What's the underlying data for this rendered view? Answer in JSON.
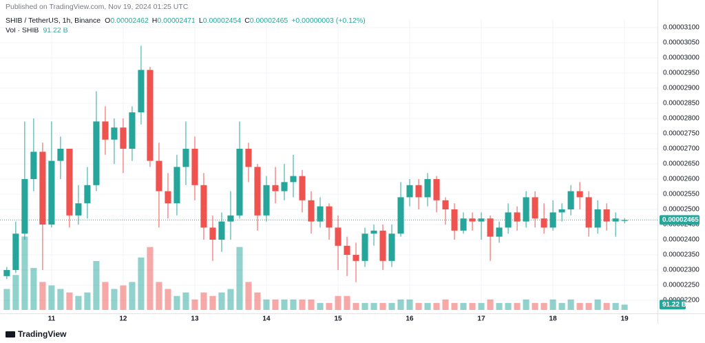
{
  "header": {
    "published": "Published on TradingView.com, Nov 19, 2024 01:25 UTC",
    "symbol": "SHIB / TetherUS, 1h, Binance",
    "o_label": "O",
    "o": "0.00002462",
    "h_label": "H",
    "h": "0.00002471",
    "l_label": "L",
    "l": "0.00002454",
    "c_label": "C",
    "c": "0.00002465",
    "change": "+0.00000003 (+0.12%)",
    "vol_label": "Vol · SHIB",
    "vol_value": "91.22 B"
  },
  "footer": {
    "brand": "TradingView"
  },
  "chart_data": {
    "type": "candlestick",
    "up_color": "#26a69a",
    "down_color": "#ef5350",
    "grid": true,
    "xlim": [
      10.28,
      19.46
    ],
    "xticks": [
      11,
      12,
      13,
      14,
      15,
      16,
      17,
      18,
      19
    ],
    "ylim": [
      2.157e-05,
      3.127e-05
    ],
    "yticks": [
      {
        "value": 2.2e-05,
        "label": "0.00002200"
      },
      {
        "value": 2.25e-05,
        "label": "0.00002250"
      },
      {
        "value": 2.3e-05,
        "label": "0.00002300"
      },
      {
        "value": 2.35e-05,
        "label": "0.00002350"
      },
      {
        "value": 2.4e-05,
        "label": "0.00002400"
      },
      {
        "value": 2.45e-05,
        "label": "0.00002450"
      },
      {
        "value": 2.5e-05,
        "label": "0.00002500"
      },
      {
        "value": 2.55e-05,
        "label": "0.00002550"
      },
      {
        "value": 2.6e-05,
        "label": "0.00002600"
      },
      {
        "value": 2.65e-05,
        "label": "0.00002650"
      },
      {
        "value": 2.7e-05,
        "label": "0.00002700"
      },
      {
        "value": 2.75e-05,
        "label": "0.00002750"
      },
      {
        "value": 2.8e-05,
        "label": "0.00002800"
      },
      {
        "value": 2.85e-05,
        "label": "0.00002850"
      },
      {
        "value": 2.9e-05,
        "label": "0.00002900"
      },
      {
        "value": 2.95e-05,
        "label": "0.00002950"
      },
      {
        "value": 3e-05,
        "label": "0.00003000"
      },
      {
        "value": 3.05e-05,
        "label": "0.00003050"
      },
      {
        "value": 3.1e-05,
        "label": "0.00003100"
      }
    ],
    "last_price": {
      "value": 2.465e-05,
      "label": "0.00002465"
    },
    "vlim": [
      0,
      1300
    ],
    "x": [
      10.375,
      10.5,
      10.625,
      10.75,
      10.875,
      11,
      11.125,
      11.25,
      11.375,
      11.5,
      11.625,
      11.75,
      11.875,
      12,
      12.125,
      12.25,
      12.375,
      12.5,
      12.625,
      12.75,
      12.875,
      13,
      13.125,
      13.25,
      13.375,
      13.5,
      13.625,
      13.75,
      13.875,
      14,
      14.125,
      14.25,
      14.375,
      14.5,
      14.625,
      14.75,
      14.875,
      15,
      15.125,
      15.25,
      15.375,
      15.5,
      15.625,
      15.75,
      15.875,
      16,
      16.125,
      16.25,
      16.375,
      16.5,
      16.625,
      16.75,
      16.875,
      17,
      17.125,
      17.25,
      17.375,
      17.5,
      17.625,
      17.75,
      17.875,
      18,
      18.125,
      18.25,
      18.375,
      18.5,
      18.625,
      18.75,
      18.875,
      19
    ],
    "open": [
      2.28e-05,
      2.3e-05,
      2.42e-05,
      2.6e-05,
      2.69e-05,
      2.45e-05,
      2.66e-05,
      2.7e-05,
      2.48e-05,
      2.52e-05,
      2.58e-05,
      2.79e-05,
      2.73e-05,
      2.77e-05,
      2.7e-05,
      2.82e-05,
      2.96e-05,
      2.66e-05,
      2.56e-05,
      2.52e-05,
      2.64e-05,
      2.7e-05,
      2.58e-05,
      2.44e-05,
      2.4e-05,
      2.46e-05,
      2.48e-05,
      2.7e-05,
      2.64e-05,
      2.48e-05,
      2.58e-05,
      2.56e-05,
      2.59e-05,
      2.61e-05,
      2.53e-05,
      2.46e-05,
      2.51e-05,
      2.44e-05,
      2.38e-05,
      2.35e-05,
      2.33e-05,
      2.42e-05,
      2.43e-05,
      2.33e-05,
      2.42e-05,
      2.54e-05,
      2.58e-05,
      2.54e-05,
      2.6e-05,
      2.53e-05,
      2.5e-05,
      2.43e-05,
      2.47e-05,
      2.46e-05,
      2.47e-05,
      2.41e-05,
      2.44e-05,
      2.49e-05,
      2.46e-05,
      2.54e-05,
      2.47e-05,
      2.44e-05,
      2.49e-05,
      2.5e-05,
      2.56e-05,
      2.54e-05,
      2.44e-05,
      2.5e-05,
      2.46e-05,
      2.462e-05
    ],
    "high": [
      2.31e-05,
      2.46e-05,
      2.79e-05,
      2.8e-05,
      2.72e-05,
      2.79e-05,
      2.74e-05,
      2.7e-05,
      2.58e-05,
      2.64e-05,
      2.89e-05,
      2.84e-05,
      2.8e-05,
      2.8e-05,
      2.84e-05,
      3.04e-05,
      2.97e-05,
      2.72e-05,
      2.62e-05,
      2.68e-05,
      2.79e-05,
      2.74e-05,
      2.62e-05,
      2.48e-05,
      2.49e-05,
      2.56e-05,
      2.79e-05,
      2.72e-05,
      2.65e-05,
      2.61e-05,
      2.64e-05,
      2.65e-05,
      2.68e-05,
      2.63e-05,
      2.56e-05,
      2.54e-05,
      2.52e-05,
      2.48e-05,
      2.41e-05,
      2.39e-05,
      2.44e-05,
      2.45e-05,
      2.45e-05,
      2.45e-05,
      2.59e-05,
      2.6e-05,
      2.6e-05,
      2.62e-05,
      2.61e-05,
      2.54e-05,
      2.52e-05,
      2.49e-05,
      2.49e-05,
      2.49e-05,
      2.48e-05,
      2.46e-05,
      2.52e-05,
      2.51e-05,
      2.56e-05,
      2.56e-05,
      2.52e-05,
      2.53e-05,
      2.52e-05,
      2.58e-05,
      2.59e-05,
      2.56e-05,
      2.53e-05,
      2.52e-05,
      2.49e-05,
      2.471e-05
    ],
    "low": [
      2.27e-05,
      2.29e-05,
      2.4e-05,
      2.56e-05,
      2.3e-05,
      2.44e-05,
      2.6e-05,
      2.44e-05,
      2.45e-05,
      2.47e-05,
      2.56e-05,
      2.68e-05,
      2.65e-05,
      2.62e-05,
      2.66e-05,
      2.78e-05,
      2.64e-05,
      2.44e-05,
      2.47e-05,
      2.48e-05,
      2.58e-05,
      2.53e-05,
      2.4e-05,
      2.33e-05,
      2.36e-05,
      2.4e-05,
      2.47e-05,
      2.59e-05,
      2.43e-05,
      2.46e-05,
      2.52e-05,
      2.53e-05,
      2.54e-05,
      2.49e-05,
      2.42e-05,
      2.44e-05,
      2.4e-05,
      2.3e-05,
      2.28e-05,
      2.26e-05,
      2.31e-05,
      2.38e-05,
      2.3e-05,
      2.31e-05,
      2.41e-05,
      2.51e-05,
      2.5e-05,
      2.51e-05,
      2.49e-05,
      2.45e-05,
      2.4e-05,
      2.42e-05,
      2.43e-05,
      2.4e-05,
      2.33e-05,
      2.39e-05,
      2.42e-05,
      2.43e-05,
      2.44e-05,
      2.44e-05,
      2.42e-05,
      2.43e-05,
      2.46e-05,
      2.48e-05,
      2.5e-05,
      2.41e-05,
      2.42e-05,
      2.43e-05,
      2.41e-05,
      2.454e-05
    ],
    "close": [
      2.3e-05,
      2.42e-05,
      2.6e-05,
      2.69e-05,
      2.45e-05,
      2.66e-05,
      2.7e-05,
      2.48e-05,
      2.52e-05,
      2.58e-05,
      2.79e-05,
      2.73e-05,
      2.77e-05,
      2.7e-05,
      2.82e-05,
      2.96e-05,
      2.66e-05,
      2.56e-05,
      2.52e-05,
      2.64e-05,
      2.7e-05,
      2.58e-05,
      2.44e-05,
      2.4e-05,
      2.46e-05,
      2.48e-05,
      2.7e-05,
      2.64e-05,
      2.48e-05,
      2.58e-05,
      2.56e-05,
      2.59e-05,
      2.61e-05,
      2.53e-05,
      2.46e-05,
      2.51e-05,
      2.44e-05,
      2.38e-05,
      2.35e-05,
      2.33e-05,
      2.42e-05,
      2.43e-05,
      2.33e-05,
      2.42e-05,
      2.54e-05,
      2.58e-05,
      2.54e-05,
      2.6e-05,
      2.53e-05,
      2.5e-05,
      2.43e-05,
      2.47e-05,
      2.46e-05,
      2.47e-05,
      2.41e-05,
      2.44e-05,
      2.49e-05,
      2.46e-05,
      2.54e-05,
      2.47e-05,
      2.44e-05,
      2.49e-05,
      2.5e-05,
      2.56e-05,
      2.54e-05,
      2.44e-05,
      2.5e-05,
      2.46e-05,
      2.47e-05,
      2.465e-05
    ],
    "volume": [
      360,
      600,
      1260,
      720,
      480,
      420,
      360,
      300,
      240,
      300,
      840,
      480,
      360,
      420,
      480,
      900,
      1080,
      480,
      360,
      240,
      300,
      180,
      300,
      240,
      300,
      360,
      1080,
      480,
      300,
      180,
      180,
      180,
      180,
      180,
      180,
      120,
      120,
      240,
      240,
      120,
      120,
      120,
      120,
      120,
      180,
      180,
      120,
      120,
      120,
      180,
      120,
      120,
      120,
      120,
      180,
      120,
      120,
      120,
      180,
      120,
      120,
      180,
      120,
      180,
      120,
      120,
      180,
      120,
      120,
      91.22
    ]
  }
}
